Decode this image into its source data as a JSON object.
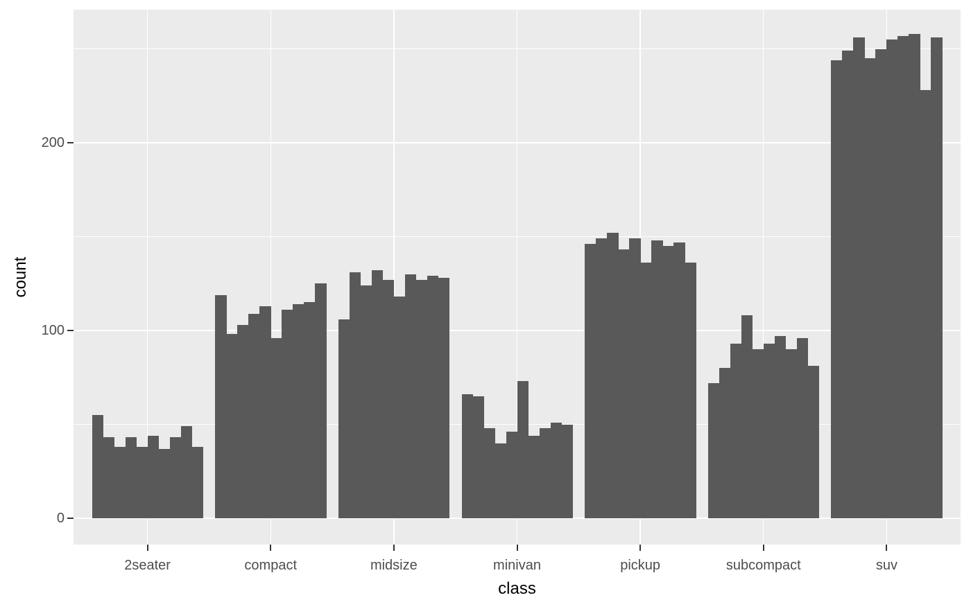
{
  "chart_data": {
    "type": "bar",
    "title": "",
    "xlabel": "class",
    "ylabel": "count",
    "bar_style": "dodged_sub_bars",
    "sub_bars_per_category": 10,
    "categories": [
      "2seater",
      "compact",
      "midsize",
      "minivan",
      "pickup",
      "subcompact",
      "suv"
    ],
    "values": [
      [
        55,
        43,
        38,
        43,
        38,
        44,
        37,
        43,
        49,
        38
      ],
      [
        119,
        98,
        103,
        109,
        113,
        96,
        111,
        114,
        115,
        125
      ],
      [
        106,
        131,
        124,
        132,
        127,
        118,
        130,
        127,
        129,
        128
      ],
      [
        66,
        65,
        48,
        40,
        46,
        73,
        44,
        48,
        51,
        50
      ],
      [
        146,
        149,
        152,
        143,
        149,
        136,
        148,
        145,
        147,
        136
      ],
      [
        72,
        80,
        93,
        108,
        90,
        93,
        97,
        90,
        96,
        81
      ],
      [
        244,
        249,
        256,
        245,
        250,
        255,
        257,
        258,
        228,
        256
      ]
    ],
    "y_ticks": [
      {
        "value": 0,
        "label": "0"
      },
      {
        "value": 100,
        "label": "100"
      },
      {
        "value": 200,
        "label": "200"
      }
    ],
    "y_minor_gridlines": [
      50,
      150,
      250
    ],
    "ylim": [
      0,
      271
    ],
    "grid": "on",
    "legend": "none",
    "colors": {
      "bar_fill": "#595959",
      "panel_background": "#EBEBEB",
      "gridline": "#FFFFFF",
      "axis_text": "#4D4D4D",
      "axis_title": "#000000",
      "tick_mark": "#333333",
      "figure_background": "#FFFFFF"
    }
  }
}
